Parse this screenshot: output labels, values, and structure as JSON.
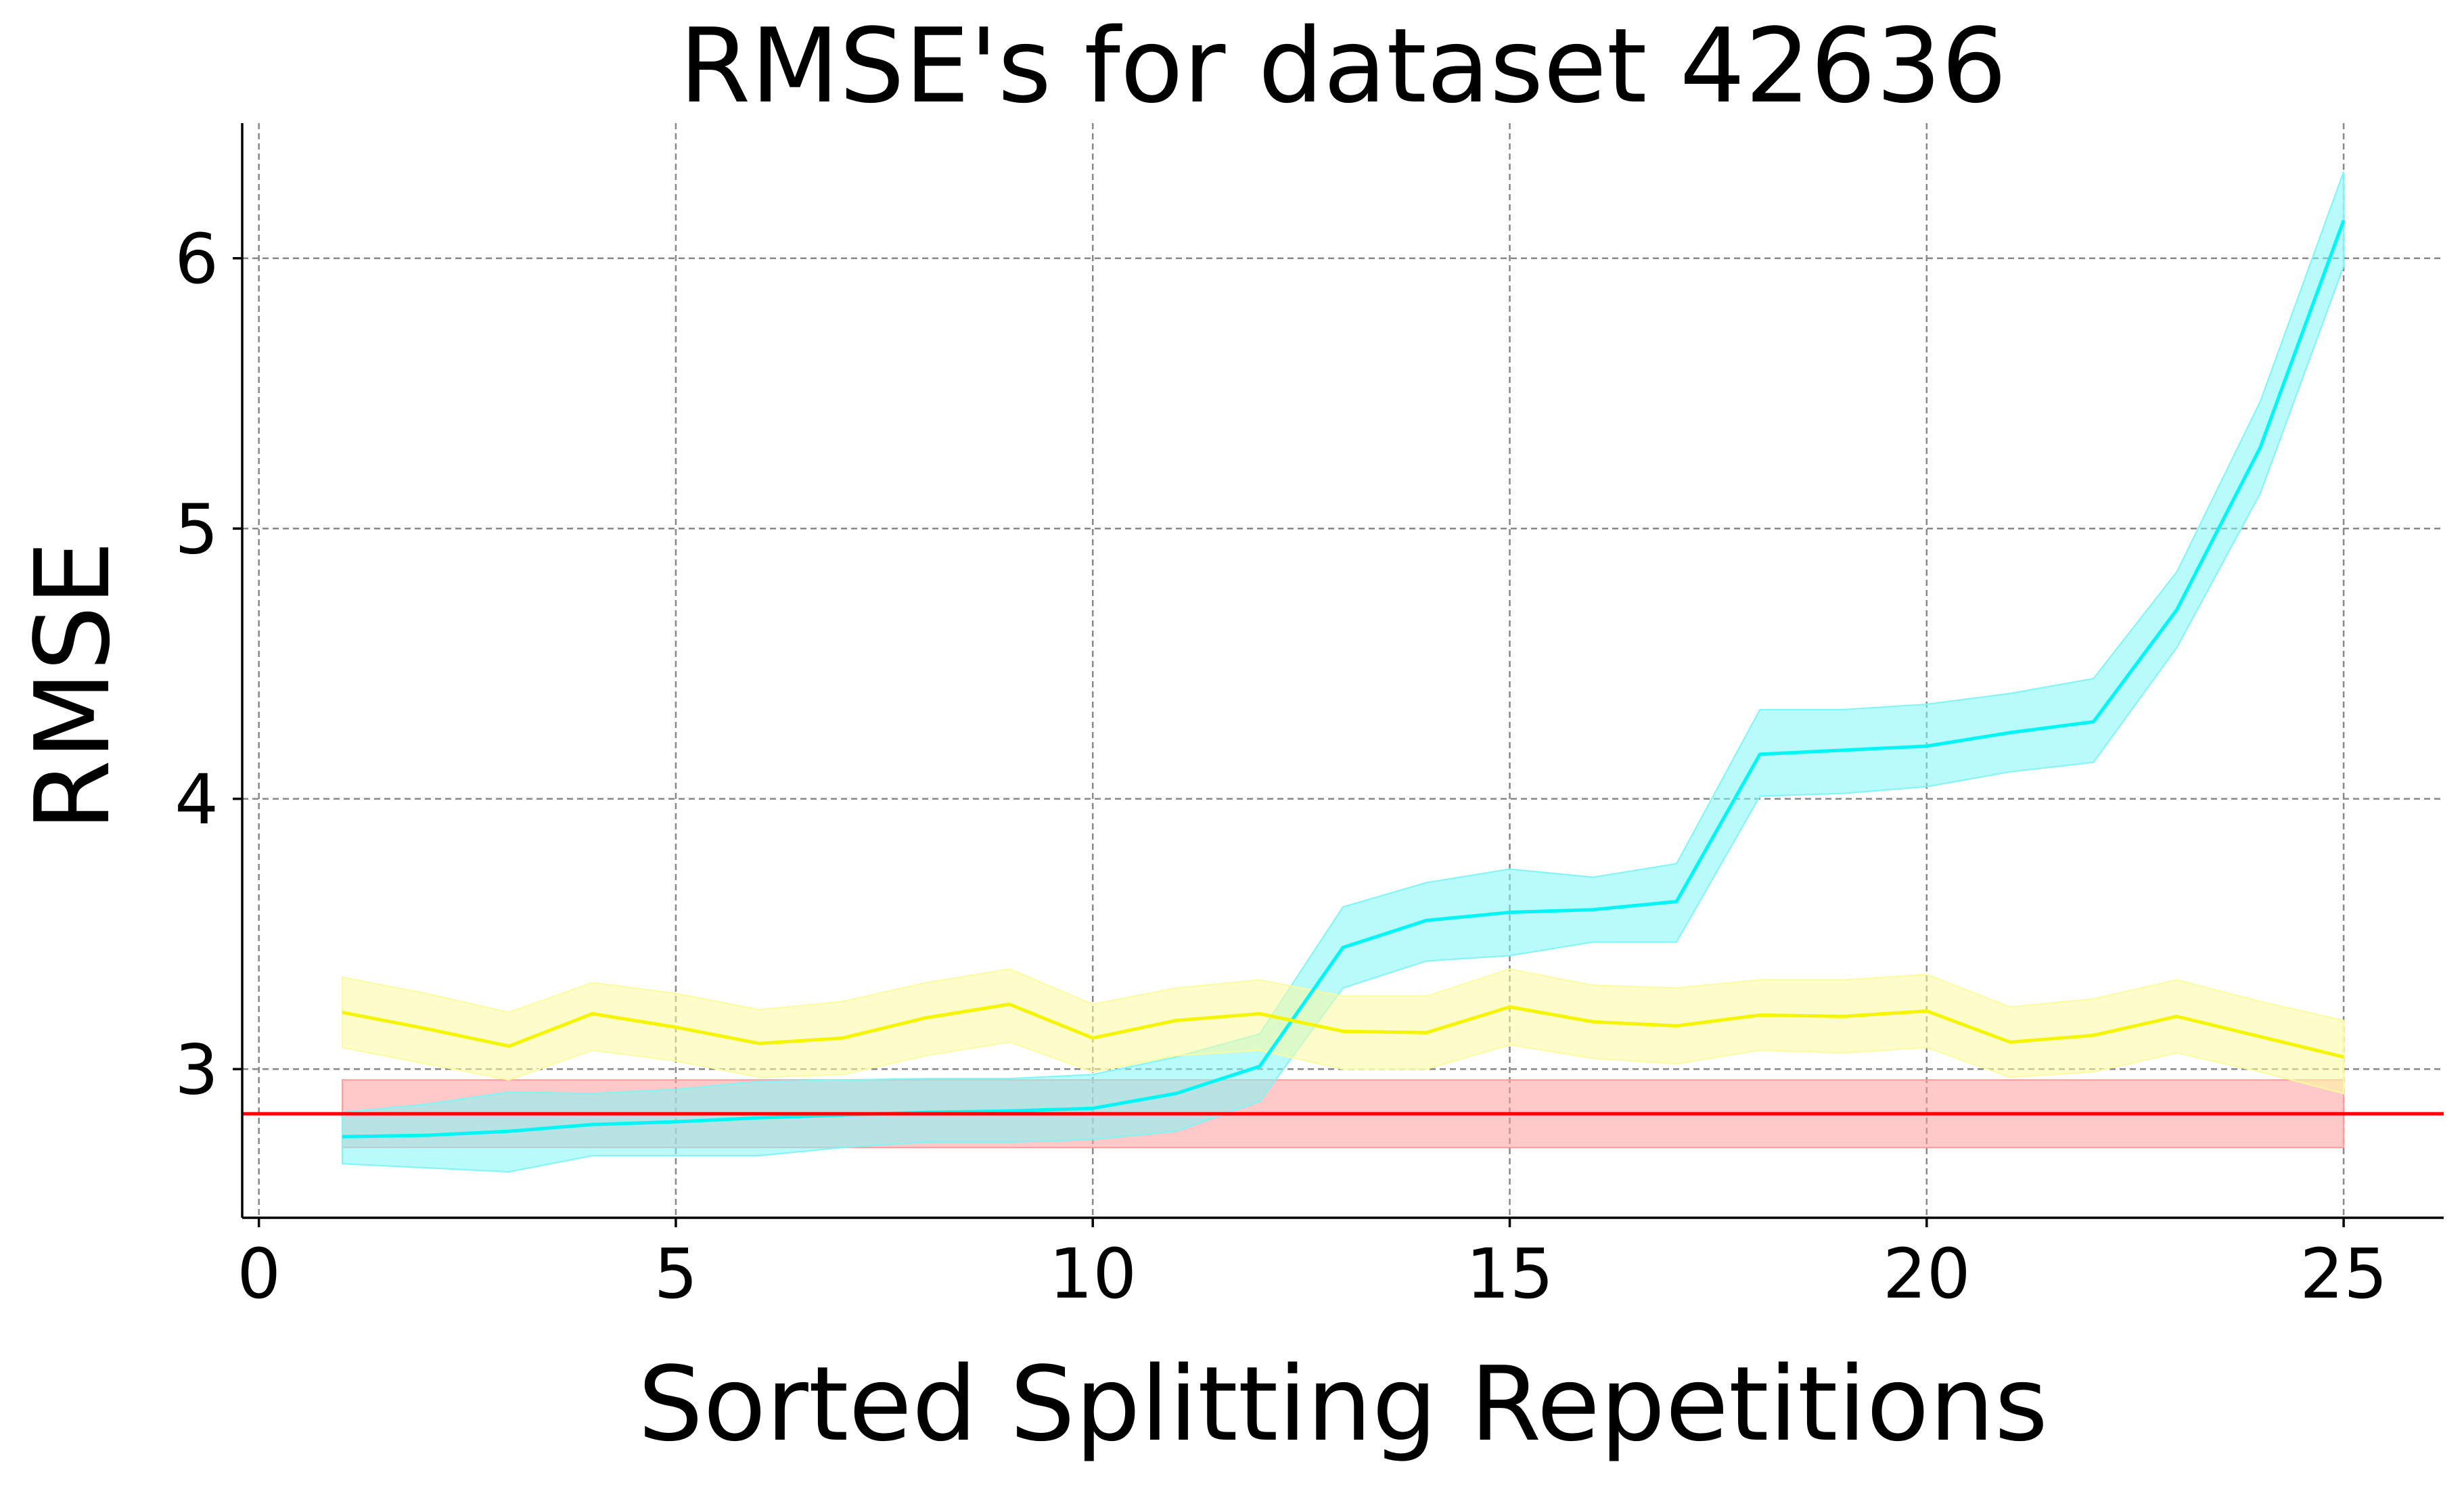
{
  "chart_data": {
    "type": "line",
    "title": "RMSE's for dataset 42636",
    "xlabel": "Sorted Splitting Repetitions",
    "ylabel": "RMSE",
    "xlim": [
      -0.2,
      26.2
    ],
    "ylim": [
      2.45,
      6.5
    ],
    "xticks": [
      0,
      5,
      10,
      15,
      20,
      25
    ],
    "yticks": [
      3,
      4,
      5,
      6
    ],
    "grid": true,
    "series": [
      {
        "color": "#00f5f5",
        "fill_color": "#7ff5f5",
        "x": [
          1,
          2,
          3,
          4,
          5,
          6,
          7,
          8,
          9,
          10,
          11,
          12,
          13,
          14,
          15,
          16,
          17,
          18,
          19,
          20,
          21,
          22,
          23,
          24,
          25
        ],
        "y": [
          2.75,
          2.755,
          2.77,
          2.795,
          2.805,
          2.82,
          2.83,
          2.84,
          2.845,
          2.855,
          2.91,
          3.01,
          3.45,
          3.55,
          3.58,
          3.59,
          3.62,
          4.165,
          4.18,
          4.195,
          4.245,
          4.285,
          4.7,
          5.3,
          6.14
        ],
        "lower": [
          2.65,
          2.635,
          2.62,
          2.68,
          2.68,
          2.68,
          2.71,
          2.73,
          2.73,
          2.74,
          2.77,
          2.88,
          3.3,
          3.4,
          3.42,
          3.47,
          3.47,
          4.01,
          4.02,
          4.045,
          4.1,
          4.135,
          4.56,
          5.13,
          5.97
        ],
        "upper": [
          2.84,
          2.87,
          2.915,
          2.91,
          2.925,
          2.955,
          2.96,
          2.965,
          2.965,
          2.98,
          3.045,
          3.13,
          3.6,
          3.69,
          3.74,
          3.71,
          3.76,
          4.33,
          4.33,
          4.35,
          4.39,
          4.445,
          4.84,
          5.47,
          6.32
        ]
      },
      {
        "color": "#f5f500",
        "fill_color": "#fbfba0",
        "x": [
          1,
          2,
          3,
          4,
          5,
          6,
          7,
          8,
          9,
          10,
          11,
          12,
          13,
          14,
          15,
          16,
          17,
          18,
          19,
          20,
          21,
          22,
          23,
          24,
          25
        ],
        "y": [
          3.21,
          3.15,
          3.085,
          3.205,
          3.155,
          3.095,
          3.115,
          3.19,
          3.24,
          3.115,
          3.18,
          3.205,
          3.14,
          3.135,
          3.23,
          3.175,
          3.16,
          3.2,
          3.195,
          3.215,
          3.1,
          3.125,
          3.195,
          3.12,
          3.045
        ],
        "lower": [
          3.08,
          3.02,
          2.96,
          3.07,
          3.03,
          2.97,
          2.98,
          3.05,
          3.1,
          2.99,
          3.05,
          3.07,
          3.0,
          3.0,
          3.09,
          3.04,
          3.02,
          3.07,
          3.06,
          3.08,
          2.97,
          2.99,
          3.06,
          2.99,
          2.91
        ],
        "upper": [
          3.34,
          3.28,
          3.21,
          3.32,
          3.28,
          3.22,
          3.25,
          3.32,
          3.37,
          3.24,
          3.3,
          3.33,
          3.27,
          3.27,
          3.37,
          3.31,
          3.3,
          3.33,
          3.33,
          3.35,
          3.23,
          3.26,
          3.33,
          3.25,
          3.18
        ]
      }
    ],
    "reference": {
      "color": "#ff0000",
      "fill_color": "#ff9c9c",
      "y": 2.835,
      "lower": 2.71,
      "upper": 2.96,
      "x_start": 1,
      "x_end": 25
    }
  }
}
